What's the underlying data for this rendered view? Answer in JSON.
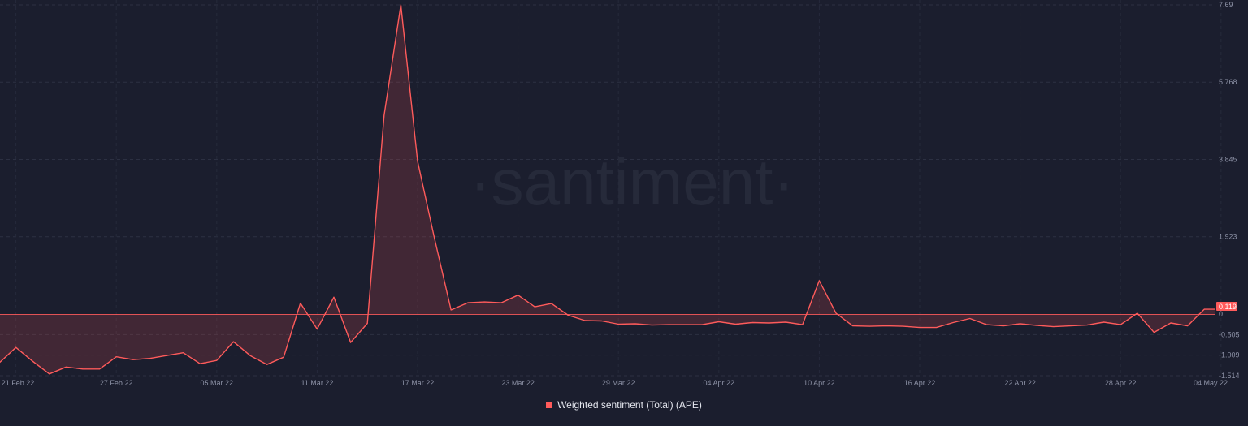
{
  "watermark": "·santiment·",
  "chart_data": {
    "type": "area",
    "series": [
      {
        "name": "Weighted sentiment (Total) (APE)",
        "color": "#ff5b5b",
        "x": [
          "2022-02-20",
          "2022-02-21",
          "2022-02-22",
          "2022-02-23",
          "2022-02-24",
          "2022-02-25",
          "2022-02-26",
          "2022-02-27",
          "2022-02-28",
          "2022-03-01",
          "2022-03-02",
          "2022-03-03",
          "2022-03-04",
          "2022-03-05",
          "2022-03-06",
          "2022-03-07",
          "2022-03-08",
          "2022-03-09",
          "2022-03-10",
          "2022-03-11",
          "2022-03-12",
          "2022-03-13",
          "2022-03-14",
          "2022-03-15",
          "2022-03-16",
          "2022-03-17",
          "2022-03-18",
          "2022-03-19",
          "2022-03-20",
          "2022-03-21",
          "2022-03-22",
          "2022-03-23",
          "2022-03-24",
          "2022-03-25",
          "2022-03-26",
          "2022-03-27",
          "2022-03-28",
          "2022-03-29",
          "2022-03-30",
          "2022-03-31",
          "2022-04-01",
          "2022-04-02",
          "2022-04-03",
          "2022-04-04",
          "2022-04-05",
          "2022-04-06",
          "2022-04-07",
          "2022-04-08",
          "2022-04-09",
          "2022-04-10",
          "2022-04-11",
          "2022-04-12",
          "2022-04-13",
          "2022-04-14",
          "2022-04-15",
          "2022-04-16",
          "2022-04-17",
          "2022-04-18",
          "2022-04-19",
          "2022-04-20",
          "2022-04-21",
          "2022-04-22",
          "2022-04-23",
          "2022-04-24",
          "2022-04-25",
          "2022-04-26",
          "2022-04-27",
          "2022-04-28",
          "2022-04-29",
          "2022-04-30",
          "2022-05-01",
          "2022-05-02",
          "2022-05-03",
          "2022-05-04"
        ],
        "values": [
          -1.2,
          -0.82,
          -1.16,
          -1.47,
          -1.3,
          -1.35,
          -1.35,
          -1.05,
          -1.12,
          -1.09,
          -1.02,
          -0.95,
          -1.22,
          -1.14,
          -0.68,
          -1.02,
          -1.24,
          -1.06,
          0.27,
          -0.37,
          0.42,
          -0.7,
          -0.23,
          4.94,
          7.69,
          3.8,
          1.9,
          0.1,
          0.28,
          0.3,
          0.28,
          0.47,
          0.18,
          0.26,
          -0.03,
          -0.16,
          -0.17,
          -0.25,
          -0.24,
          -0.27,
          -0.26,
          -0.26,
          -0.26,
          -0.19,
          -0.25,
          -0.21,
          -0.22,
          -0.2,
          -0.26,
          0.83,
          0.02,
          -0.29,
          -0.3,
          -0.29,
          -0.3,
          -0.33,
          -0.33,
          -0.21,
          -0.11,
          -0.26,
          -0.29,
          -0.24,
          -0.28,
          -0.31,
          -0.29,
          -0.27,
          -0.2,
          -0.26,
          0.02,
          -0.45,
          -0.22,
          -0.29,
          0.12,
          0.12
        ]
      }
    ],
    "x_tick_labels": [
      "21 Feb 22",
      "27 Feb 22",
      "05 Mar 22",
      "11 Mar 22",
      "17 Mar 22",
      "23 Mar 22",
      "29 Mar 22",
      "04 Apr 22",
      "10 Apr 22",
      "16 Apr 22",
      "22 Apr 22",
      "28 Apr 22",
      "04 May 22"
    ],
    "x_tick_dates": [
      "2022-02-21",
      "2022-02-27",
      "2022-03-05",
      "2022-03-11",
      "2022-03-17",
      "2022-03-23",
      "2022-03-29",
      "2022-04-04",
      "2022-04-10",
      "2022-04-16",
      "2022-04-22",
      "2022-04-28",
      "2022-05-04"
    ],
    "y_tick_labels": [
      "7.69",
      "5.768",
      "3.845",
      "1.923",
      "0",
      "-0.505",
      "-1.009",
      "-1.514"
    ],
    "y_tick_values": [
      7.69,
      5.768,
      3.845,
      1.923,
      0,
      -0.505,
      -1.009,
      -1.514
    ],
    "ylim": [
      -1.514,
      7.69
    ],
    "xlim": [
      "2022-02-20",
      "2022-05-04"
    ],
    "y_scale": "piecewise-linear (0 to 7.69 compressed above, -1.514 to 0 expanded below)",
    "current_value_label": "0.119",
    "baseline_value": 0,
    "grid": true,
    "legend_position": "bottom-center",
    "title": "",
    "xlabel": "",
    "ylabel": ""
  }
}
